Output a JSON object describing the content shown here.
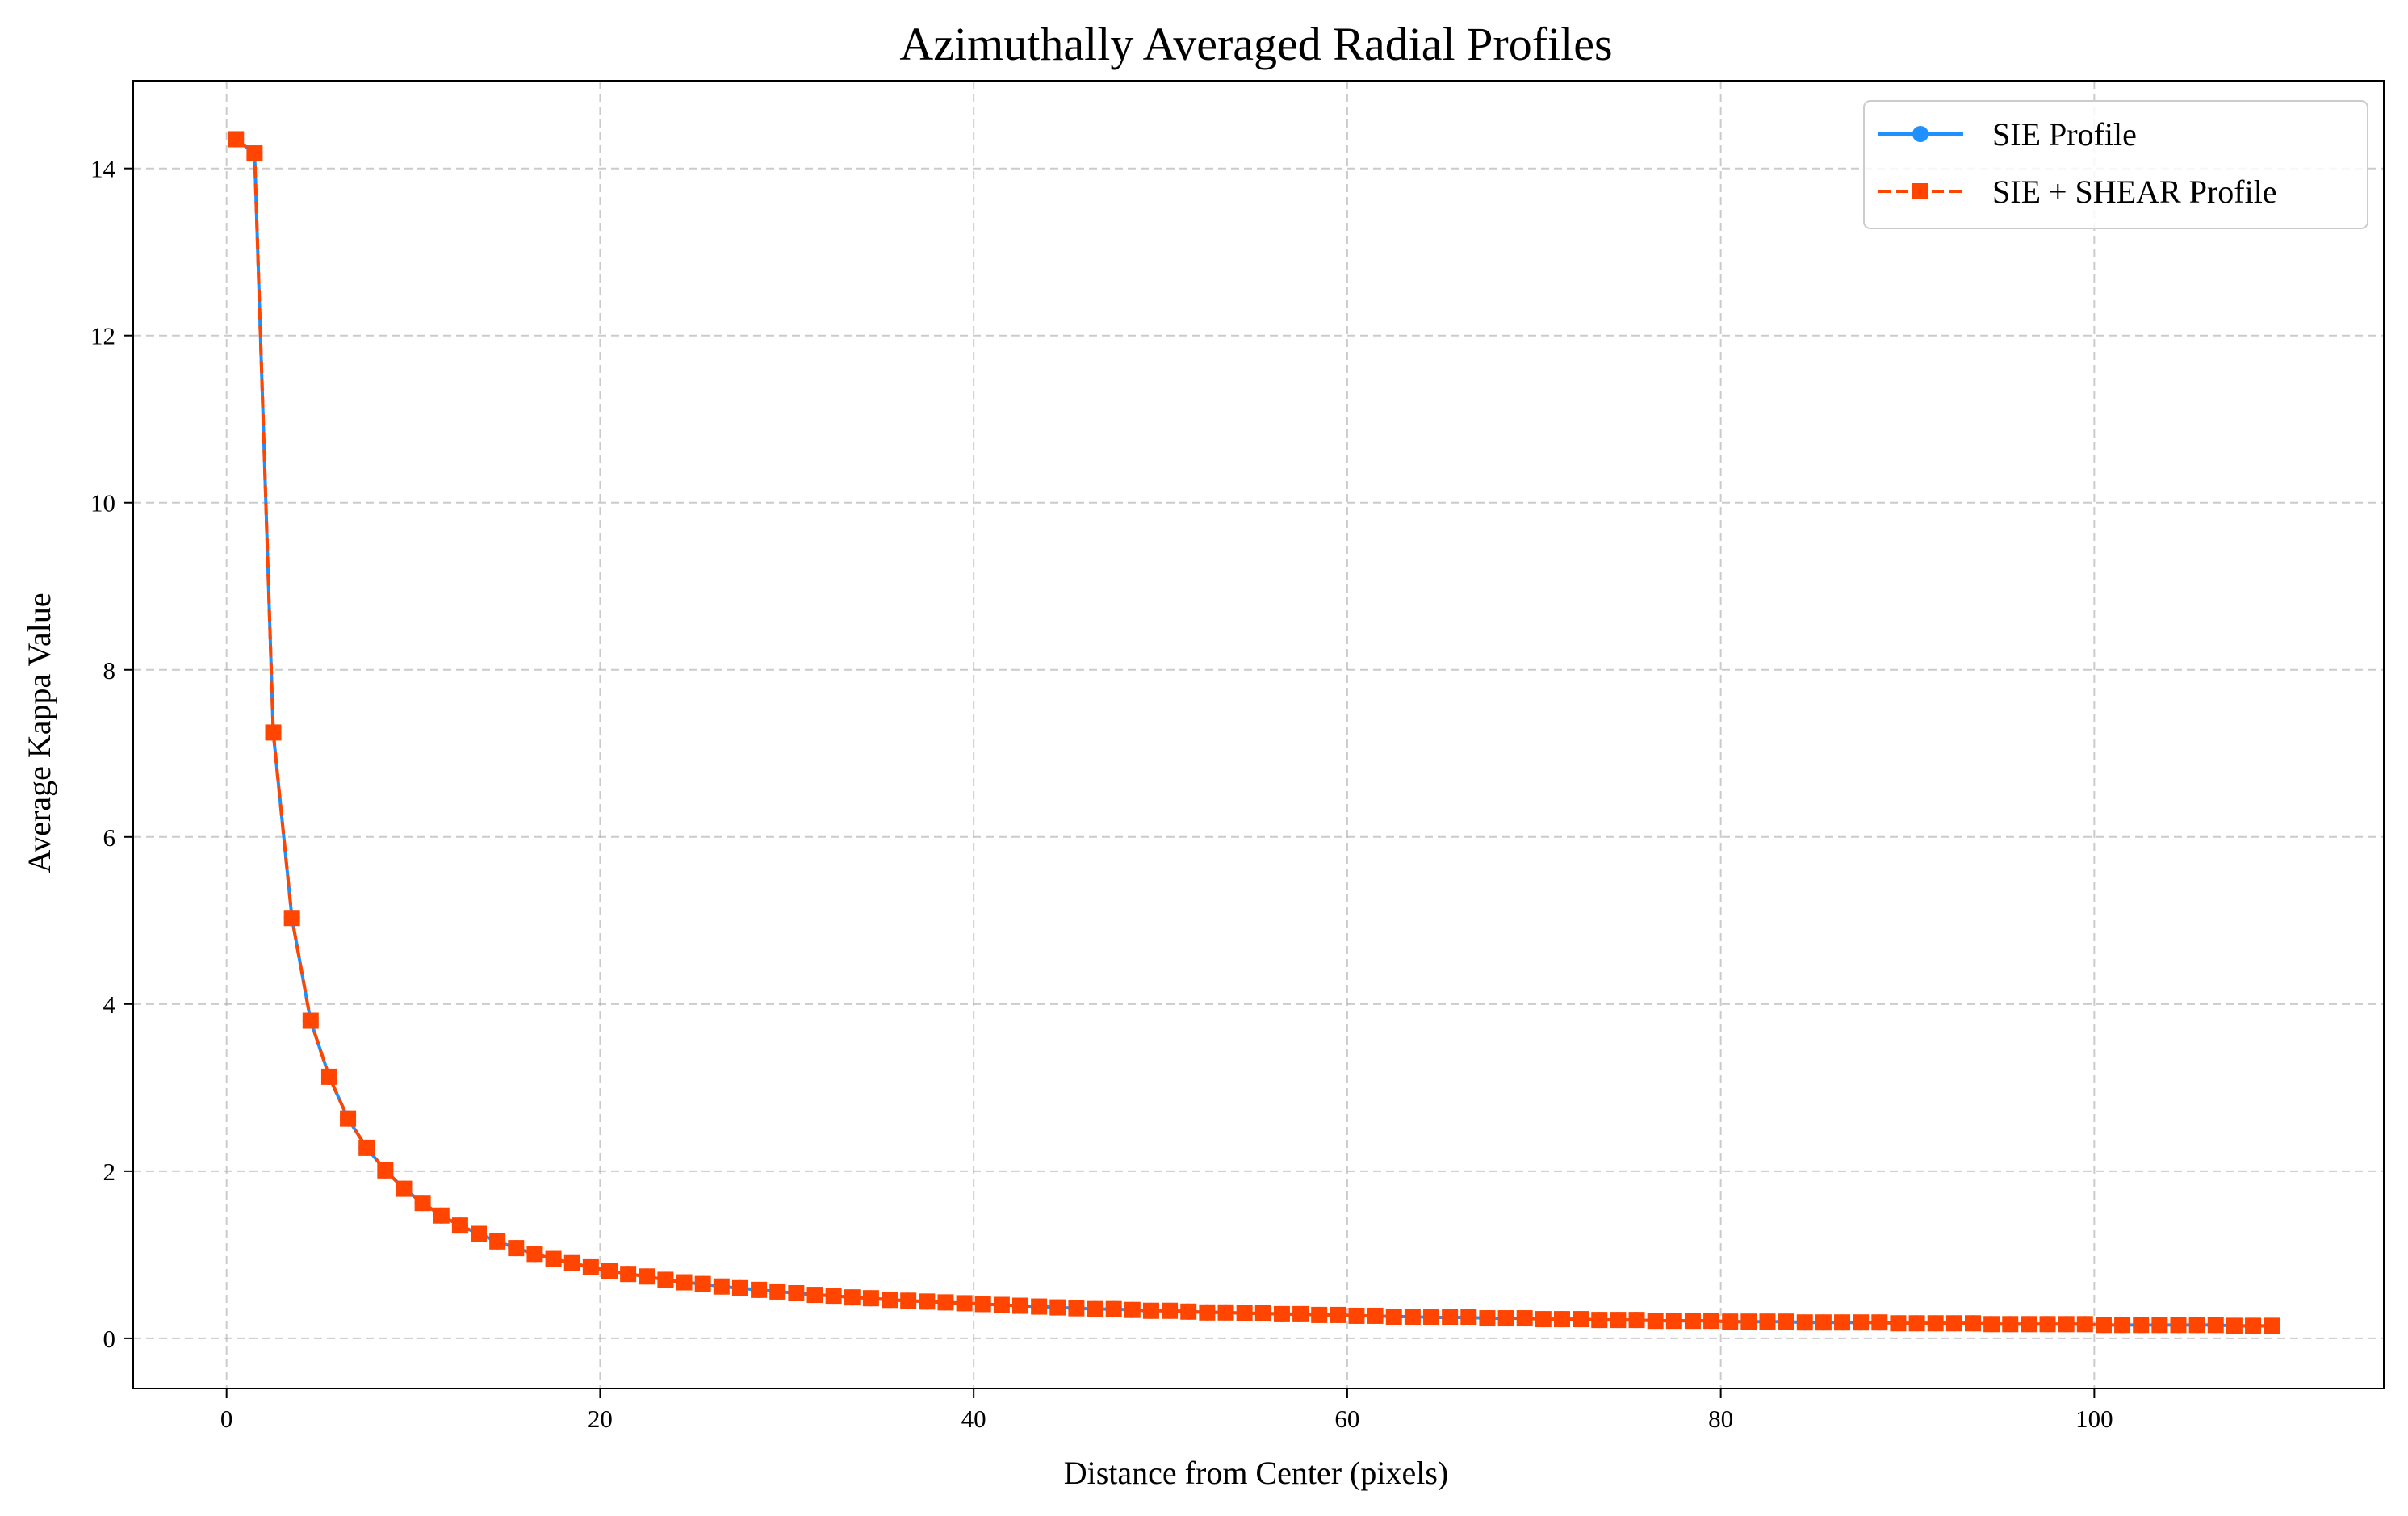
{
  "chart_data": {
    "type": "line",
    "title": "Azimuthally Averaged Radial Profiles",
    "xlabel": "Distance from Center (pixels)",
    "ylabel": "Average Kappa Value",
    "xlim": [
      -5.0,
      115.5
    ],
    "ylim": [
      -0.6,
      15.05
    ],
    "xticks": [
      0,
      20,
      40,
      60,
      80,
      100
    ],
    "yticks": [
      0,
      2,
      4,
      6,
      8,
      10,
      12,
      14
    ],
    "grid": true,
    "legend_position": "top-right",
    "x_start": 0.5,
    "x_step": 1,
    "series": [
      {
        "name": "SIE Profile",
        "color": "#1e90ff",
        "marker": "circle",
        "linestyle": "solid",
        "values": [
          14.35,
          14.18,
          7.25,
          5.03,
          3.8,
          3.13,
          2.63,
          2.28,
          2.01,
          1.79,
          1.62,
          1.47,
          1.35,
          1.25,
          1.16,
          1.08,
          1.01,
          0.95,
          0.9,
          0.85,
          0.81,
          0.77,
          0.74,
          0.7,
          0.67,
          0.65,
          0.62,
          0.6,
          0.58,
          0.56,
          0.54,
          0.52,
          0.51,
          0.49,
          0.48,
          0.46,
          0.45,
          0.44,
          0.43,
          0.42,
          0.41,
          0.4,
          0.39,
          0.38,
          0.37,
          0.36,
          0.35,
          0.35,
          0.34,
          0.33,
          0.33,
          0.32,
          0.31,
          0.31,
          0.3,
          0.3,
          0.29,
          0.29,
          0.28,
          0.28,
          0.27,
          0.27,
          0.26,
          0.26,
          0.25,
          0.25,
          0.25,
          0.24,
          0.24,
          0.24,
          0.23,
          0.23,
          0.23,
          0.22,
          0.22,
          0.22,
          0.21,
          0.21,
          0.21,
          0.21,
          0.2,
          0.2,
          0.2,
          0.2,
          0.19,
          0.19,
          0.19,
          0.19,
          0.19,
          0.18,
          0.18,
          0.18,
          0.18,
          0.18,
          0.17,
          0.17,
          0.17,
          0.17,
          0.17,
          0.17,
          0.16,
          0.16,
          0.16,
          0.16,
          0.16,
          0.16,
          0.16,
          0.15,
          0.15,
          0.15
        ]
      },
      {
        "name": "SIE + SHEAR Profile",
        "color": "#ff4500",
        "marker": "square",
        "linestyle": "dashed",
        "values": [
          14.35,
          14.18,
          7.25,
          5.03,
          3.8,
          3.13,
          2.63,
          2.28,
          2.01,
          1.79,
          1.62,
          1.47,
          1.35,
          1.25,
          1.16,
          1.08,
          1.01,
          0.95,
          0.9,
          0.85,
          0.81,
          0.77,
          0.74,
          0.7,
          0.67,
          0.65,
          0.62,
          0.6,
          0.58,
          0.56,
          0.54,
          0.52,
          0.51,
          0.49,
          0.48,
          0.46,
          0.45,
          0.44,
          0.43,
          0.42,
          0.41,
          0.4,
          0.39,
          0.38,
          0.37,
          0.36,
          0.35,
          0.35,
          0.34,
          0.33,
          0.33,
          0.32,
          0.31,
          0.31,
          0.3,
          0.3,
          0.29,
          0.29,
          0.28,
          0.28,
          0.27,
          0.27,
          0.26,
          0.26,
          0.25,
          0.25,
          0.25,
          0.24,
          0.24,
          0.24,
          0.23,
          0.23,
          0.23,
          0.22,
          0.22,
          0.22,
          0.21,
          0.21,
          0.21,
          0.21,
          0.2,
          0.2,
          0.2,
          0.2,
          0.19,
          0.19,
          0.19,
          0.19,
          0.19,
          0.18,
          0.18,
          0.18,
          0.18,
          0.18,
          0.17,
          0.17,
          0.17,
          0.17,
          0.17,
          0.17,
          0.16,
          0.16,
          0.16,
          0.16,
          0.16,
          0.16,
          0.16,
          0.15,
          0.15,
          0.15
        ]
      }
    ]
  }
}
